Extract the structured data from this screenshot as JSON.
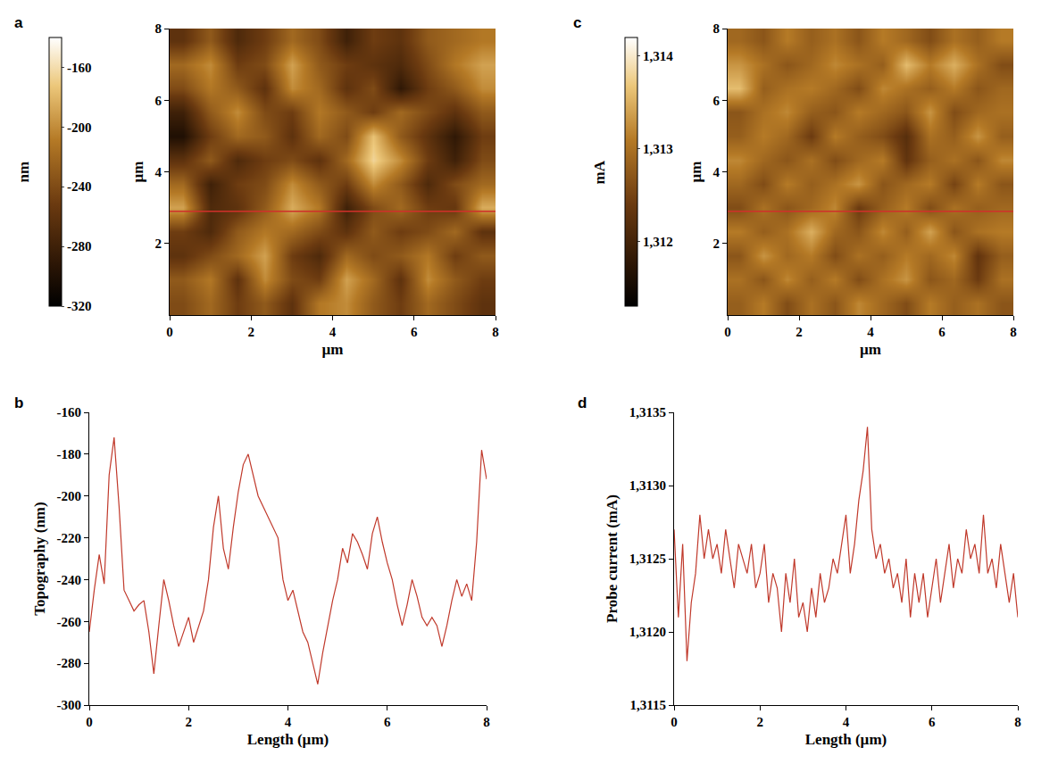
{
  "chart_data": [
    {
      "type": "heatmap",
      "panel_label": "a",
      "x_label": "µm",
      "y_label": "µm",
      "colorbar_label": "nm",
      "xlim": [
        0,
        8
      ],
      "ylim": [
        0,
        8
      ],
      "xticks": [
        0,
        2,
        4,
        6,
        8
      ],
      "yticks": [
        2,
        4,
        6,
        8
      ],
      "color_range": [
        -320,
        -140
      ],
      "color_ticks": [
        -160,
        -200,
        -240,
        -280,
        -320
      ],
      "profile_y": 2.9,
      "color": "#d0302a",
      "cells": [
        [
          -240,
          -220,
          -250,
          -230,
          -260,
          -210,
          -200,
          -230,
          -250,
          -220,
          -240,
          -260
        ],
        [
          -230,
          -210,
          -260,
          -200,
          -240,
          -250,
          -190,
          -220,
          -260,
          -200,
          -230,
          -250
        ],
        [
          -260,
          -240,
          -220,
          -190,
          -250,
          -270,
          -220,
          -240,
          -230,
          -210,
          -250,
          -230
        ],
        [
          -250,
          -270,
          -230,
          -210,
          -220,
          -240,
          -260,
          -230,
          -250,
          -240,
          -220,
          -260
        ],
        [
          -190,
          -270,
          -260,
          -230,
          -185,
          -210,
          -280,
          -240,
          -220,
          -250,
          -255,
          -185
        ],
        [
          -220,
          -280,
          -250,
          -240,
          -200,
          -230,
          -250,
          -200,
          -230,
          -270,
          -240,
          -220
        ],
        [
          -260,
          -230,
          -270,
          -250,
          -240,
          -260,
          -220,
          -165,
          -200,
          -250,
          -280,
          -240
        ],
        [
          -300,
          -250,
          -220,
          -230,
          -260,
          -220,
          -240,
          -175,
          -230,
          -260,
          -290,
          -250
        ],
        [
          -280,
          -230,
          -200,
          -240,
          -250,
          -210,
          -230,
          -250,
          -220,
          -240,
          -260,
          -230
        ],
        [
          -240,
          -210,
          -230,
          -260,
          -200,
          -220,
          -260,
          -240,
          -290,
          -250,
          -230,
          -200
        ],
        [
          -220,
          -200,
          -250,
          -240,
          -190,
          -230,
          -250,
          -260,
          -270,
          -240,
          -210,
          -190
        ],
        [
          -260,
          -230,
          -270,
          -250,
          -220,
          -240,
          -280,
          -250,
          -260,
          -230,
          -220,
          -210
        ]
      ]
    },
    {
      "type": "line",
      "panel_label": "b",
      "x_label": "Length (µm)",
      "y_label": "Topography (nm)",
      "xlim": [
        0,
        8
      ],
      "ylim": [
        -300,
        -160
      ],
      "xticks": [
        0,
        2,
        4,
        6,
        8
      ],
      "yticks": [
        -300,
        -280,
        -260,
        -240,
        -220,
        -200,
        -180,
        -160
      ],
      "color": "#c0392b",
      "x": [
        0,
        0.1,
        0.2,
        0.3,
        0.4,
        0.5,
        0.6,
        0.7,
        0.8,
        0.9,
        1.0,
        1.1,
        1.2,
        1.3,
        1.4,
        1.5,
        1.6,
        1.7,
        1.8,
        1.9,
        2.0,
        2.1,
        2.2,
        2.3,
        2.4,
        2.5,
        2.6,
        2.7,
        2.8,
        2.9,
        3.0,
        3.1,
        3.2,
        3.3,
        3.4,
        3.5,
        3.6,
        3.7,
        3.8,
        3.9,
        4.0,
        4.1,
        4.2,
        4.3,
        4.4,
        4.5,
        4.6,
        4.7,
        4.8,
        4.9,
        5.0,
        5.1,
        5.2,
        5.3,
        5.4,
        5.5,
        5.6,
        5.7,
        5.8,
        5.9,
        6.0,
        6.1,
        6.2,
        6.3,
        6.4,
        6.5,
        6.6,
        6.7,
        6.8,
        6.9,
        7.0,
        7.1,
        7.2,
        7.3,
        7.4,
        7.5,
        7.6,
        7.7,
        7.8,
        7.9,
        8.0
      ],
      "values": [
        -265,
        -245,
        -228,
        -242,
        -190,
        -172,
        -205,
        -245,
        -250,
        -255,
        -252,
        -250,
        -265,
        -285,
        -262,
        -240,
        -250,
        -262,
        -272,
        -265,
        -258,
        -270,
        -262,
        -255,
        -240,
        -215,
        -200,
        -225,
        -235,
        -215,
        -198,
        -185,
        -180,
        -190,
        -200,
        -205,
        -210,
        -215,
        -220,
        -240,
        -250,
        -245,
        -255,
        -265,
        -270,
        -280,
        -290,
        -275,
        -262,
        -250,
        -240,
        -225,
        -232,
        -218,
        -222,
        -228,
        -235,
        -218,
        -210,
        -222,
        -232,
        -240,
        -252,
        -262,
        -252,
        -240,
        -248,
        -258,
        -262,
        -258,
        -262,
        -272,
        -262,
        -250,
        -240,
        -248,
        -242,
        -250,
        -222,
        -178,
        -192
      ]
    },
    {
      "type": "heatmap",
      "panel_label": "c",
      "x_label": "µm",
      "y_label": "µm",
      "colorbar_label": "mA",
      "xlim": [
        0,
        8
      ],
      "ylim": [
        0,
        8
      ],
      "xticks": [
        0,
        2,
        4,
        6,
        8
      ],
      "yticks": [
        2,
        4,
        6,
        8
      ],
      "color_range": [
        1.3113,
        1.3142
      ],
      "color_ticks": [
        {
          "value": 1.312,
          "label": "1,312"
        },
        {
          "value": 1.313,
          "label": "1,313"
        },
        {
          "value": 1.314,
          "label": "1,314"
        }
      ],
      "profile_y": 2.9,
      "color": "#d0302a",
      "cells": [
        [
          1.3128,
          1.3131,
          1.3126,
          1.313,
          1.3127,
          1.3132,
          1.3129,
          1.3126,
          1.3131,
          1.3128,
          1.313,
          1.3127
        ],
        [
          1.313,
          1.3127,
          1.3132,
          1.3128,
          1.3131,
          1.3126,
          1.313,
          1.3133,
          1.3127,
          1.3129,
          1.3124,
          1.313
        ],
        [
          1.3127,
          1.3133,
          1.3129,
          1.3131,
          1.3126,
          1.313,
          1.3128,
          1.3131,
          1.3129,
          1.3132,
          1.3123,
          1.3128
        ],
        [
          1.3131,
          1.3128,
          1.313,
          1.3135,
          1.3129,
          1.3127,
          1.3132,
          1.3128,
          1.3134,
          1.3127,
          1.313,
          1.3131
        ],
        [
          1.3126,
          1.313,
          1.3127,
          1.3129,
          1.3132,
          1.3124,
          1.3128,
          1.3131,
          1.3126,
          1.313,
          1.3128,
          1.3129
        ],
        [
          1.3129,
          1.3126,
          1.3131,
          1.3128,
          1.313,
          1.3133,
          1.3127,
          1.3129,
          1.3131,
          1.3125,
          1.3131,
          1.3127
        ],
        [
          1.3132,
          1.3129,
          1.3127,
          1.313,
          1.3126,
          1.3129,
          1.3131,
          1.3123,
          1.3128,
          1.313,
          1.3127,
          1.3132
        ],
        [
          1.3128,
          1.3131,
          1.3129,
          1.3124,
          1.3131,
          1.3128,
          1.3126,
          1.3122,
          1.313,
          1.3128,
          1.3133,
          1.3128
        ],
        [
          1.3127,
          1.313,
          1.3132,
          1.3128,
          1.3127,
          1.3131,
          1.3129,
          1.3127,
          1.3133,
          1.3126,
          1.3129,
          1.313
        ],
        [
          1.3136,
          1.3128,
          1.313,
          1.3131,
          1.3129,
          1.3126,
          1.3132,
          1.313,
          1.3128,
          1.3131,
          1.3127,
          1.3129
        ],
        [
          1.3133,
          1.313,
          1.3127,
          1.3129,
          1.3132,
          1.313,
          1.3128,
          1.3136,
          1.3131,
          1.3135,
          1.313,
          1.3126
        ],
        [
          1.3129,
          1.3127,
          1.3131,
          1.3128,
          1.313,
          1.3127,
          1.3131,
          1.3129,
          1.3126,
          1.313,
          1.3128,
          1.3131
        ]
      ]
    },
    {
      "type": "line",
      "panel_label": "d",
      "x_label": "Length (µm)",
      "y_label": "Probe current (mA)",
      "xlim": [
        0,
        8
      ],
      "ylim": [
        1.3115,
        1.3135
      ],
      "xticks": [
        0,
        2,
        4,
        6,
        8
      ],
      "yticks": [
        {
          "value": 1.3115,
          "label": "1,3115"
        },
        {
          "value": 1.312,
          "label": "1,3120"
        },
        {
          "value": 1.3125,
          "label": "1,3125"
        },
        {
          "value": 1.313,
          "label": "1,3130"
        },
        {
          "value": 1.3135,
          "label": "1,3135"
        }
      ],
      "color": "#c0392b",
      "x": [
        0,
        0.1,
        0.2,
        0.3,
        0.4,
        0.5,
        0.6,
        0.7,
        0.8,
        0.9,
        1.0,
        1.1,
        1.2,
        1.3,
        1.4,
        1.5,
        1.6,
        1.7,
        1.8,
        1.9,
        2.0,
        2.1,
        2.2,
        2.3,
        2.4,
        2.5,
        2.6,
        2.7,
        2.8,
        2.9,
        3.0,
        3.1,
        3.2,
        3.3,
        3.4,
        3.5,
        3.6,
        3.7,
        3.8,
        3.9,
        4.0,
        4.1,
        4.2,
        4.3,
        4.4,
        4.5,
        4.6,
        4.7,
        4.8,
        4.9,
        5.0,
        5.1,
        5.2,
        5.3,
        5.4,
        5.5,
        5.6,
        5.7,
        5.8,
        5.9,
        6.0,
        6.1,
        6.2,
        6.3,
        6.4,
        6.5,
        6.6,
        6.7,
        6.8,
        6.9,
        7.0,
        7.1,
        7.2,
        7.3,
        7.4,
        7.5,
        7.6,
        7.7,
        7.8,
        7.9,
        8.0
      ],
      "values": [
        1.3127,
        1.3121,
        1.3126,
        1.3118,
        1.3122,
        1.3124,
        1.3128,
        1.3125,
        1.3127,
        1.3125,
        1.3126,
        1.3124,
        1.3127,
        1.3125,
        1.3123,
        1.3126,
        1.3125,
        1.3124,
        1.3126,
        1.3123,
        1.3124,
        1.3126,
        1.3122,
        1.3124,
        1.3123,
        1.312,
        1.3124,
        1.3122,
        1.3125,
        1.3121,
        1.3122,
        1.312,
        1.3123,
        1.3121,
        1.3124,
        1.3122,
        1.3123,
        1.3125,
        1.3124,
        1.3126,
        1.3128,
        1.3124,
        1.3126,
        1.3129,
        1.3131,
        1.3134,
        1.3127,
        1.3125,
        1.3126,
        1.3124,
        1.3125,
        1.3123,
        1.3124,
        1.3122,
        1.3125,
        1.3121,
        1.3124,
        1.3122,
        1.3124,
        1.3121,
        1.3123,
        1.3125,
        1.3122,
        1.3124,
        1.3126,
        1.3123,
        1.3125,
        1.3124,
        1.3127,
        1.3125,
        1.3126,
        1.3124,
        1.3128,
        1.3124,
        1.3125,
        1.3123,
        1.3126,
        1.3124,
        1.3122,
        1.3124,
        1.3121
      ]
    }
  ]
}
